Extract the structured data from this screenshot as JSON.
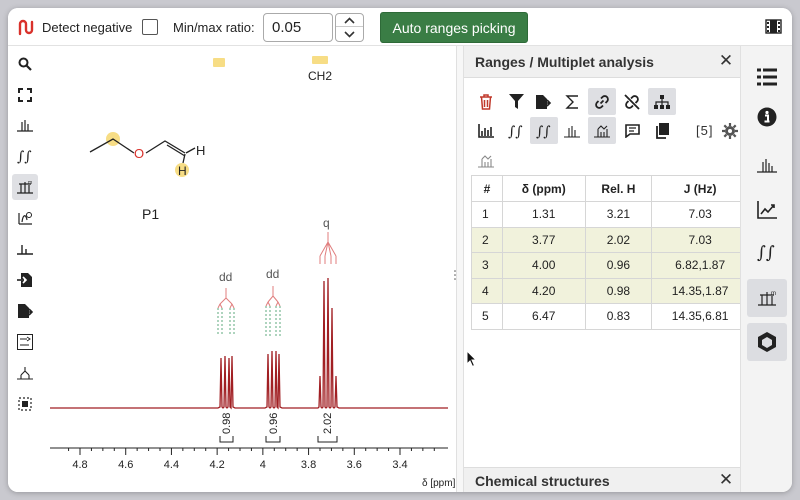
{
  "toolbar": {
    "detect_negative_label": "Detect negative",
    "detect_negative_checked": false,
    "ratio_label": "Min/max ratio:",
    "ratio_value": "0.05",
    "auto_button_label": "Auto ranges picking",
    "icons": [
      "app-logo-icon",
      "spin-up-icon",
      "spin-down-icon",
      "film-strip-icon"
    ]
  },
  "left_tools": [
    "zoom-icon",
    "full-zoom-icon",
    "peak-picking-icon",
    "integral-icon",
    "range-picking-icon",
    "phase-correction-icon",
    "baseline-correction-icon",
    "import-icon",
    "export-icon",
    "fft-icon",
    "multiplet-icon",
    "select-box-icon"
  ],
  "spectrum": {
    "molecule_label": "P1",
    "atom_labels": {
      "oxygen": "O",
      "hydrogen_top": "H",
      "hydrogen_bottom": "H"
    },
    "assignment_label": "CH2",
    "multiplet_labels": [
      "dd",
      "dd",
      "q"
    ],
    "integrals": [
      "0.98",
      "0.96",
      "2.02"
    ],
    "x_ticks": [
      "4.8",
      "4.6",
      "4.4",
      "4.2",
      "4",
      "3.8",
      "3.6",
      "3.4"
    ],
    "x_axis_label": "δ [ppm]",
    "line_color": "#a11f23",
    "multiplet_color_top": "#e07d7d",
    "multiplet_color_bottom": "#5ea87d",
    "highlight_color": "#f7dd85"
  },
  "ranges_panel": {
    "title": "Ranges / Multiplet analysis",
    "count": "[5]",
    "tool_icons": [
      "delete-icon",
      "filter-icon",
      "export-icon",
      "sum-icon",
      "link-icon",
      "unlink-icon",
      "hierarchy-icon",
      "spectrum-bar-icon",
      "integral-icon",
      "relative-integral-icon",
      "peak-icon",
      "multiplet-icon",
      "comment-icon",
      "copy-icon",
      "settings-icon",
      "coupling-icon"
    ],
    "columns": [
      "#",
      "δ (ppm)",
      "Rel. H",
      "J (Hz)"
    ],
    "rows": [
      {
        "num": "1",
        "delta": "1.31",
        "relh": "3.21",
        "j": "7.03",
        "highlighted": false
      },
      {
        "num": "2",
        "delta": "3.77",
        "relh": "2.02",
        "j": "7.03",
        "highlighted": true
      },
      {
        "num": "3",
        "delta": "4.00",
        "relh": "0.96",
        "j": "6.82,1.87",
        "highlighted": true
      },
      {
        "num": "4",
        "delta": "4.20",
        "relh": "0.98",
        "j": "14.35,1.87",
        "highlighted": true
      },
      {
        "num": "5",
        "delta": "6.47",
        "relh": "0.83",
        "j": "14.35,6.81",
        "highlighted": false
      }
    ]
  },
  "structures_panel": {
    "title": "Chemical structures"
  },
  "right_tools": [
    "spectra-list-icon",
    "info-icon",
    "peaks-icon",
    "chart-icon",
    "integrals-icon",
    "ranges-icon",
    "structure-icon"
  ]
}
